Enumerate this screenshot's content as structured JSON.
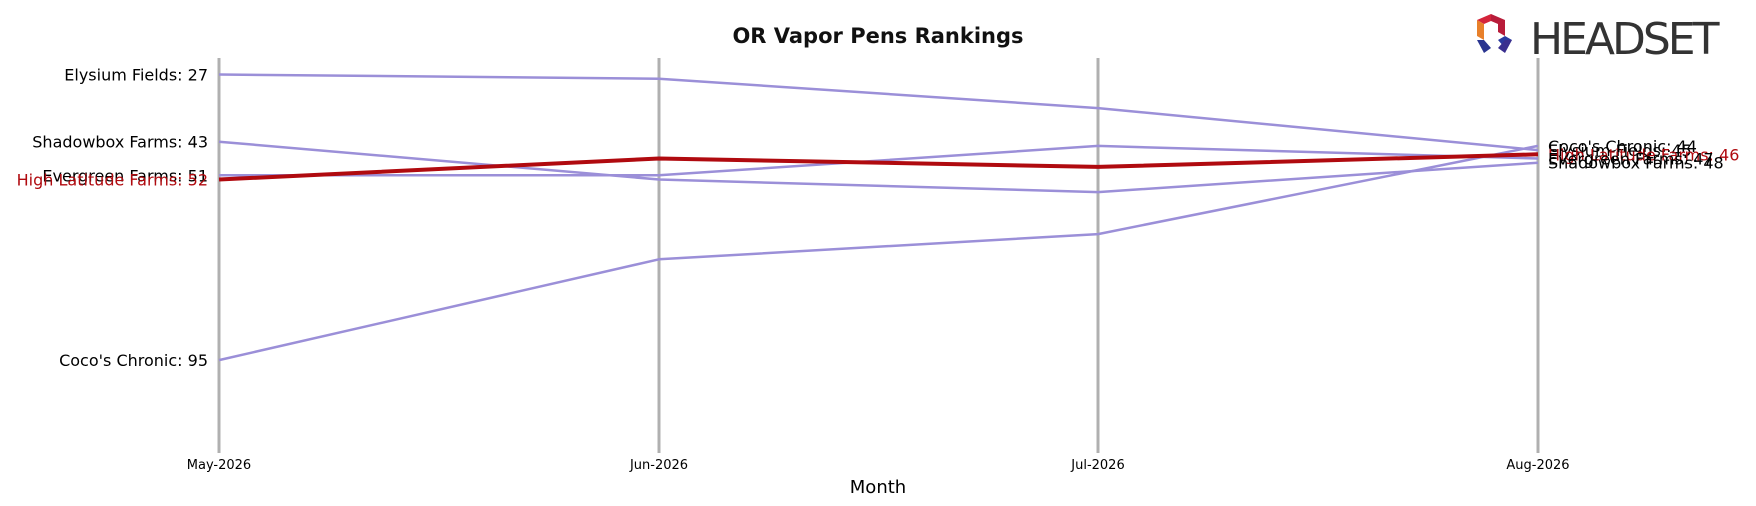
{
  "chart_data": {
    "type": "line",
    "title": "OR Vapor Pens Rankings",
    "xlabel": "Month",
    "ylabel": "",
    "categories": [
      "May-2026",
      "Jun-2026",
      "Jul-2026",
      "Aug-2026"
    ],
    "y_inverted": true,
    "ylim": [
      24,
      98
    ],
    "grid": "vertical lines at each month",
    "series": [
      {
        "name": "Elysium Fields",
        "values": [
          27,
          28,
          35,
          45
        ],
        "color": "#9b8fd8",
        "highlight": false
      },
      {
        "name": "Shadowbox Farms",
        "values": [
          43,
          52,
          55,
          48
        ],
        "color": "#9b8fd8",
        "highlight": false
      },
      {
        "name": "Evergreen Farms",
        "values": [
          51,
          51,
          44,
          47
        ],
        "color": "#9b8fd8",
        "highlight": false
      },
      {
        "name": "High Latitude Farms",
        "values": [
          52,
          47,
          49,
          46
        ],
        "color": "#b00a0f",
        "highlight": true
      },
      {
        "name": "Coco's Chronic",
        "values": [
          95,
          71,
          65,
          44
        ],
        "color": "#9b8fd8",
        "highlight": false
      }
    ],
    "start_labels": [
      {
        "text": "Elysium Fields: 27",
        "value": 27,
        "color": "#000000"
      },
      {
        "text": "Shadowbox Farms: 43",
        "value": 43,
        "color": "#000000"
      },
      {
        "text": "Evergreen Farms: 51",
        "value": 51,
        "color": "#000000"
      },
      {
        "text": "High Latitude Farms: 52",
        "value": 52,
        "color": "#b00a0f"
      },
      {
        "text": "Coco's Chronic: 95",
        "value": 95,
        "color": "#000000"
      }
    ],
    "end_labels": [
      {
        "text": "Coco's Chronic: 44",
        "value": 44,
        "color": "#000000"
      },
      {
        "text": "Elysium Fields: 45",
        "value": 45,
        "color": "#000000"
      },
      {
        "text": "High Latitude Farms: 46",
        "value": 46,
        "color": "#b00a0f"
      },
      {
        "text": "Evergreen Farms: 47",
        "value": 47,
        "color": "#000000"
      },
      {
        "text": "Shadowbox Farms: 48",
        "value": 48,
        "color": "#000000"
      }
    ]
  },
  "brand": {
    "name": "HEADSET",
    "logo_icon": "headset-logo-icon"
  }
}
